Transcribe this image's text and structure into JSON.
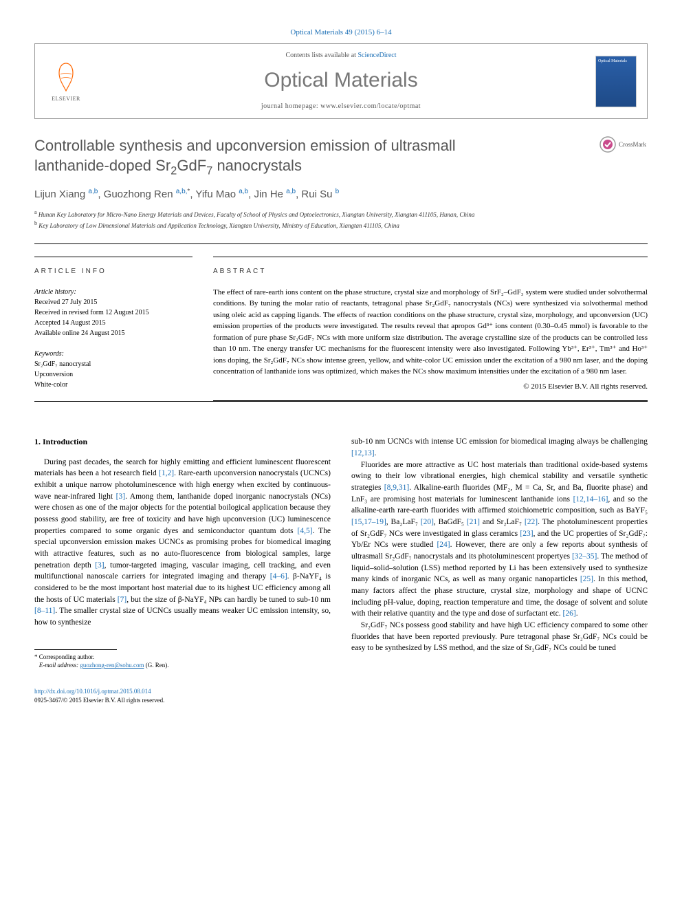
{
  "journal_ref": "Optical Materials 49 (2015) 6–14",
  "contents_prefix": "Contents lists available at ",
  "contents_link": "ScienceDirect",
  "journal_title": "Optical Materials",
  "homepage_prefix": "journal homepage: ",
  "homepage_url": "www.elsevier.com/locate/optmat",
  "elsevier_label": "ELSEVIER",
  "cover_label": "Optical Materials",
  "crossmark_label": "CrossMark",
  "title_line1": "Controllable synthesis and upconversion emission of ultrasmall",
  "title_line2_a": "lanthanide-doped Sr",
  "title_line2_b": "GdF",
  "title_line2_c": " nanocrystals",
  "authors": [
    {
      "name": "Lijun Xiang",
      "aff": "a,b",
      "corr": false
    },
    {
      "name": "Guozhong Ren",
      "aff": "a,b,",
      "corr": true
    },
    {
      "name": "Yifu Mao",
      "aff": "a,b",
      "corr": false
    },
    {
      "name": "Jin He",
      "aff": "a,b",
      "corr": false
    },
    {
      "name": "Rui Su",
      "aff": "b",
      "corr": false
    }
  ],
  "affiliations": {
    "a": "Hunan Key Laboratory for Micro-Nano Energy Materials and Devices, Faculty of School of Physics and Optoelectronics, Xiangtan University, Xiangtan 411105, Hunan, China",
    "b": "Key Laboratory of Low Dimensional Materials and Application Technology, Xiangtan University, Ministry of Education, Xiangtan 411105, China"
  },
  "info_heading": "article info",
  "abstract_heading": "abstract",
  "history_label": "Article history:",
  "history": [
    "Received 27 July 2015",
    "Received in revised form 12 August 2015",
    "Accepted 14 August 2015",
    "Available online 24 August 2015"
  ],
  "keywords_label": "Keywords:",
  "keywords": [
    "Sr₂GdF₇ nanocrystal",
    "Upconversion",
    "White-color"
  ],
  "abstract": "The effect of rare-earth ions content on the phase structure, crystal size and morphology of SrF₂–GdF₃ system were studied under solvothermal conditions. By tuning the molar ratio of reactants, tetragonal phase Sr₂GdF₇ nanocrystals (NCs) were synthesized via solvothermal method using oleic acid as capping ligands. The effects of reaction conditions on the phase structure, crystal size, morphology, and upconversion (UC) emission properties of the products were investigated. The results reveal that apropos Gd³⁺ ions content (0.30–0.45 mmol) is favorable to the formation of pure phase Sr₂GdF₇ NCs with more uniform size distribution. The average crystalline size of the products can be controlled less than 10 nm. The energy transfer UC mechanisms for the fluorescent intensity were also investigated. Following Yb³⁺, Er³⁺, Tm³⁺ and Ho³⁺ ions doping, the Sr₂GdF₇ NCs show intense green, yellow, and white-color UC emission under the excitation of a 980 nm laser, and the doping concentration of lanthanide ions was optimized, which makes the NCs show maximum intensities under the excitation of a 980 nm laser.",
  "copyright": "© 2015 Elsevier B.V. All rights reserved.",
  "intro_heading": "1. Introduction",
  "intro_col1": "During past decades, the search for highly emitting and efficient luminescent fluorescent materials has been a hot research field [1,2]. Rare-earth upconversion nanocrystals (UCNCs) exhibit a unique narrow photoluminescence with high energy when excited by continuous-wave near-infrared light [3]. Among them, lanthanide doped inorganic nanocrystals (NCs) were chosen as one of the major objects for the potential boilogical application because they possess good stability, are free of toxicity and have high upconversion (UC) luminescence properties compared to some organic dyes and semiconductor quantum dots [4,5]. The special upconversion emission makes UCNCs as promising probes for biomedical imaging with attractive features, such as no auto-fluorescence from biological samples, large penetration depth [3], tumor-targeted imaging, vascular imaging, cell tracking, and even multifunctional nanoscale carriers for integrated imaging and therapy [4–6]. β-NaYF₄ is considered to be the most important host material due to its highest UC efficiency among all the hosts of UC materials [7], but the size of β-NaYF₄ NPs can hardly be tuned to sub-10 nm [8–11]. The smaller crystal size of UCNCs usually means weaker UC emission intensity, so, how to synthesize",
  "intro_col2_p1": "sub-10 nm UCNCs with intense UC emission for biomedical imaging always be challenging [12,13].",
  "intro_col2_p2": "Fluorides are more attractive as UC host materials than traditional oxide-based systems owing to their low vibrational energies, high chemical stability and versatile synthetic strategies [8,9,31]. Alkaline-earth fluorides (MF₂, M = Ca, Sr, and Ba, fluorite phase) and LnF₃ are promising host materials for luminescent lanthanide ions [12,14–16], and so the alkaline-earth rare-earth fluorides with affirmed stoichiometric composition, such as BaYF₅ [15,17–19], Ba₂LaF₇ [20], BaGdF₅ [21] and Sr₂LaF₇ [22]. The photoluminescent properties of Sr₂GdF₇ NCs were investigated in glass ceramics [23], and the UC properties of Sr₂GdF₇: Yb/Er NCs were studied [24]. However, there are only a few reports about synthesis of ultrasmall Sr₂GdF₇ nanocrystals and its photoluminescent propertyes [32–35]. The method of liquid–solid–solution (LSS) method reported by Li has been extensively used to synthesize many kinds of inorganic NCs, as well as many organic nanoparticles [25]. In this method, many factors affect the phase structure, crystal size, morphology and shape of UCNC including pH-value, doping, reaction temperature and time, the dosage of solvent and solute with their relative quantity and the type and dose of surfactant etc. [26].",
  "intro_col2_p3": "Sr₂GdF₇ NCs possess good stability and have high UC efficiency compared to some other fluorides that have been reported previously. Pure tetragonal phase Sr₂GdF₇ NCs could be easy to be synthesized by LSS method, and the size of Sr₂GdF₇ NCs could be tuned",
  "corresponding_label": "Corresponding author.",
  "email_label": "E-mail address:",
  "email": "guozhong-ren@sohu.com",
  "email_name": "(G. Ren).",
  "doi": "http://dx.doi.org/10.1016/j.optmat.2015.08.014",
  "issn_line": "0925-3467/© 2015 Elsevier B.V. All rights reserved."
}
